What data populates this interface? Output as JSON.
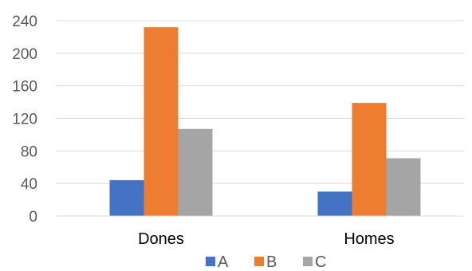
{
  "chart_data": {
    "type": "bar",
    "categories": [
      "Dones",
      "Homes"
    ],
    "series": [
      {
        "name": "A",
        "values": [
          44,
          30
        ],
        "color": "#4472C4"
      },
      {
        "name": "B",
        "values": [
          232,
          139
        ],
        "color": "#ED7D31"
      },
      {
        "name": "C",
        "values": [
          107,
          71
        ],
        "color": "#A5A5A5"
      }
    ],
    "y_ticks": [
      "0",
      "40",
      "80",
      "120",
      "160",
      "200",
      "240"
    ],
    "ylim": [
      0,
      240
    ],
    "grid": true,
    "legend_position": "bottom",
    "title": "",
    "xlabel": "",
    "ylabel": ""
  }
}
